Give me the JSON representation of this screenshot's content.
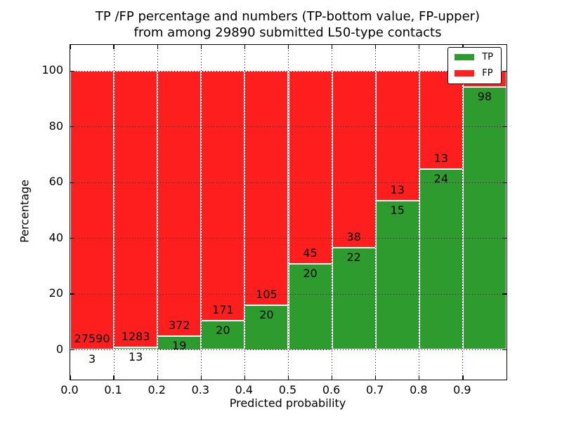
{
  "chart_data": {
    "type": "bar",
    "stacked": true,
    "normalized_to_percent": true,
    "title_line1": "TP /FP percentage and numbers (TP-bottom value, FP-upper)",
    "title_line2": "from among 29890 submitted L50-type contacts",
    "xlabel": "Predicted probability",
    "ylabel": "Percentage",
    "x_tick_labels": [
      "0.0",
      "0.1",
      "0.2",
      "0.3",
      "0.4",
      "0.5",
      "0.6",
      "0.7",
      "0.8",
      "0.9"
    ],
    "y_tick_values": [
      0,
      20,
      40,
      60,
      80,
      100
    ],
    "xlim": [
      0.0,
      1.0
    ],
    "ylim": [
      -10.7,
      109.4
    ],
    "bar_width": 0.1,
    "grid": "dotted",
    "categories": [
      "0.0-0.1",
      "0.1-0.2",
      "0.2-0.3",
      "0.3-0.4",
      "0.4-0.5",
      "0.5-0.6",
      "0.6-0.7",
      "0.7-0.8",
      "0.8-0.9",
      "0.9-1.0"
    ],
    "series": [
      {
        "name": "TP",
        "values": [
          3,
          13,
          19,
          20,
          20,
          20,
          22,
          15,
          24,
          98
        ]
      },
      {
        "name": "FP",
        "values": [
          27590,
          1283,
          372,
          171,
          105,
          45,
          38,
          13,
          13,
          6
        ]
      }
    ],
    "annotation_note": "TP count printed below each stack boundary, FP count printed above it; last FP label mostly hidden behind legend",
    "colors": {
      "tp": "#2e9b2e",
      "fp": "#ff1e1e",
      "bar_edge": "#ffffff",
      "grid": "#000000",
      "frame": "#000000",
      "background": "#ffffff"
    },
    "legend": {
      "position": "upper-right",
      "entries": [
        {
          "label": "TP",
          "color_key": "tp"
        },
        {
          "label": "FP",
          "color_key": "fp"
        }
      ]
    }
  }
}
